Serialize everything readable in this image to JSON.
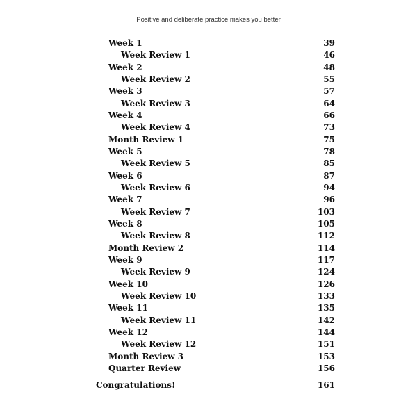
{
  "header": {
    "running_title": "Positive and deliberate practice makes you better"
  },
  "toc": [
    {
      "title": "Week 1",
      "page": "39",
      "level": 1
    },
    {
      "title": "Week Review 1",
      "page": "46",
      "level": 2
    },
    {
      "title": "Week 2",
      "page": "48",
      "level": 1
    },
    {
      "title": "Week Review 2",
      "page": "55",
      "level": 2
    },
    {
      "title": "Week 3",
      "page": "57",
      "level": 1
    },
    {
      "title": "Week Review 3",
      "page": "64",
      "level": 2
    },
    {
      "title": "Week 4",
      "page": "66",
      "level": 1
    },
    {
      "title": "Week Review 4",
      "page": "73",
      "level": 2
    },
    {
      "title": "Month Review 1",
      "page": "75",
      "level": 1
    },
    {
      "title": "Week 5",
      "page": "78",
      "level": 1
    },
    {
      "title": "Week Review 5",
      "page": "85",
      "level": 2
    },
    {
      "title": "Week 6",
      "page": "87",
      "level": 1
    },
    {
      "title": "Week Review 6",
      "page": "94",
      "level": 2
    },
    {
      "title": "Week 7",
      "page": "96",
      "level": 1
    },
    {
      "title": "Week Review 7",
      "page": "103",
      "level": 2
    },
    {
      "title": "Week 8",
      "page": "105",
      "level": 1
    },
    {
      "title": "Week Review 8",
      "page": "112",
      "level": 2
    },
    {
      "title": "Month Review 2",
      "page": "114",
      "level": 1
    },
    {
      "title": "Week 9",
      "page": "117",
      "level": 1
    },
    {
      "title": "Week Review 9",
      "page": "124",
      "level": 2
    },
    {
      "title": "Week 10",
      "page": "126",
      "level": 1
    },
    {
      "title": "Week Review 10",
      "page": "133",
      "level": 2
    },
    {
      "title": "Week 11",
      "page": "135",
      "level": 1
    },
    {
      "title": "Week Review 11",
      "page": "142",
      "level": 2
    },
    {
      "title": "Week 12",
      "page": "144",
      "level": 1
    },
    {
      "title": "Week Review 12",
      "page": "151",
      "level": 2
    },
    {
      "title": "Month Review 3",
      "page": "153",
      "level": 1
    },
    {
      "title": "Quarter Review",
      "page": "156",
      "level": 1
    },
    {
      "title": "Congratulations!",
      "page": "161",
      "level": 0
    }
  ]
}
